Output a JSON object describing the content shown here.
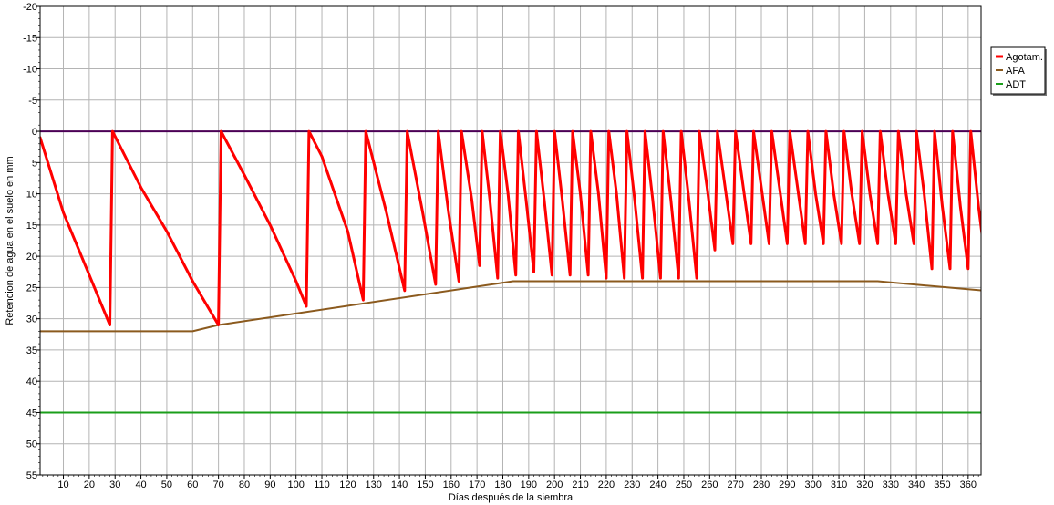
{
  "chart_data": {
    "type": "line",
    "xlabel": "Días después de la siembra",
    "ylabel": "Retencion de agua en el suelo en mm",
    "xlim": [
      1,
      365
    ],
    "ylim": [
      -20,
      55
    ],
    "y_reversed": true,
    "x_ticks": [
      10,
      20,
      30,
      40,
      50,
      60,
      70,
      80,
      90,
      100,
      110,
      120,
      130,
      140,
      150,
      160,
      170,
      180,
      190,
      200,
      210,
      220,
      230,
      240,
      250,
      260,
      270,
      280,
      290,
      300,
      310,
      320,
      330,
      340,
      350,
      360
    ],
    "y_ticks": [
      -20,
      -15,
      -10,
      -5,
      0,
      5,
      10,
      15,
      20,
      25,
      30,
      35,
      40,
      45,
      50,
      55
    ],
    "grid": true,
    "legend_position": "right",
    "reference_lines": [
      {
        "y": 0,
        "color": "#4b0055"
      }
    ],
    "series": [
      {
        "name": "Agotam.",
        "color": "#ff0000",
        "points": [
          [
            1,
            1
          ],
          [
            10,
            13
          ],
          [
            20,
            23
          ],
          [
            28,
            31
          ],
          [
            29,
            0
          ],
          [
            40,
            9
          ],
          [
            50,
            16
          ],
          [
            60,
            24
          ],
          [
            70,
            31
          ],
          [
            71,
            0
          ],
          [
            80,
            7
          ],
          [
            90,
            15
          ],
          [
            100,
            24
          ],
          [
            104,
            28
          ],
          [
            105,
            0
          ],
          [
            110,
            4
          ],
          [
            120,
            16
          ],
          [
            126,
            27
          ],
          [
            127,
            0
          ],
          [
            135,
            13
          ],
          [
            142,
            25.5
          ],
          [
            143,
            0
          ],
          [
            149,
            13
          ],
          [
            154,
            24.5
          ],
          [
            155,
            0
          ],
          [
            159,
            13
          ],
          [
            163,
            24
          ],
          [
            164,
            0
          ],
          [
            168,
            11
          ],
          [
            171,
            21.5
          ],
          [
            172,
            0
          ],
          [
            175,
            11
          ],
          [
            178,
            23.5
          ],
          [
            179,
            0
          ],
          [
            182,
            10
          ],
          [
            185,
            23
          ],
          [
            186,
            0
          ],
          [
            189,
            11
          ],
          [
            192,
            22.5
          ],
          [
            193,
            0
          ],
          [
            196,
            11
          ],
          [
            199,
            23
          ],
          [
            200,
            0
          ],
          [
            203,
            11
          ],
          [
            206,
            23
          ],
          [
            207,
            0
          ],
          [
            210,
            10
          ],
          [
            213,
            23
          ],
          [
            214,
            0
          ],
          [
            217,
            10
          ],
          [
            220,
            23.5
          ],
          [
            221,
            0
          ],
          [
            224,
            10
          ],
          [
            227,
            23.5
          ],
          [
            228,
            0
          ],
          [
            231,
            11
          ],
          [
            234,
            23.5
          ],
          [
            235,
            0
          ],
          [
            238,
            11
          ],
          [
            241,
            23.5
          ],
          [
            242,
            0
          ],
          [
            245,
            11
          ],
          [
            248,
            23.5
          ],
          [
            249,
            0
          ],
          [
            252,
            11
          ],
          [
            255,
            23.5
          ],
          [
            256,
            0
          ],
          [
            259,
            9
          ],
          [
            262,
            19
          ],
          [
            263,
            0
          ],
          [
            266,
            9
          ],
          [
            269,
            18
          ],
          [
            270,
            0
          ],
          [
            273,
            9
          ],
          [
            276,
            18
          ],
          [
            277,
            0
          ],
          [
            280,
            9
          ],
          [
            283,
            18
          ],
          [
            284,
            0
          ],
          [
            287,
            9
          ],
          [
            290,
            18
          ],
          [
            291,
            0
          ],
          [
            294,
            9
          ],
          [
            297,
            18
          ],
          [
            298,
            0
          ],
          [
            301,
            10
          ],
          [
            304,
            18
          ],
          [
            305,
            0
          ],
          [
            308,
            10
          ],
          [
            311,
            18
          ],
          [
            312,
            0
          ],
          [
            315,
            10
          ],
          [
            318,
            18
          ],
          [
            319,
            0
          ],
          [
            322,
            10
          ],
          [
            325,
            18
          ],
          [
            326,
            0
          ],
          [
            329,
            10
          ],
          [
            332,
            18
          ],
          [
            333,
            0
          ],
          [
            336,
            10
          ],
          [
            339,
            18
          ],
          [
            340,
            0
          ],
          [
            343,
            10
          ],
          [
            346,
            22
          ],
          [
            347,
            0
          ],
          [
            350,
            12
          ],
          [
            353,
            22
          ],
          [
            354,
            0
          ],
          [
            357,
            12
          ],
          [
            360,
            22
          ],
          [
            361,
            0
          ],
          [
            364,
            12
          ],
          [
            367,
            22
          ],
          [
            368,
            0
          ]
        ]
      },
      {
        "name": "AFA",
        "color": "#8b5a1e",
        "points": [
          [
            1,
            32
          ],
          [
            60,
            32
          ],
          [
            70,
            31
          ],
          [
            184,
            24
          ],
          [
            325,
            24
          ],
          [
            366,
            25.5
          ]
        ]
      },
      {
        "name": "ADT",
        "color": "#1a9e1a",
        "points": [
          [
            1,
            45
          ],
          [
            366,
            45
          ]
        ]
      }
    ]
  }
}
